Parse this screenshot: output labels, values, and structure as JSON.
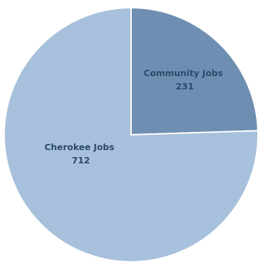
{
  "chart_data": {
    "type": "pie",
    "slices": [
      {
        "label": "Community Jobs",
        "value": 231,
        "value_label": "231",
        "color": "#6e8fb1"
      },
      {
        "label": "Cherokee Jobs",
        "value": 712,
        "value_label": "712",
        "color": "#a7c0db"
      }
    ],
    "label_color": "#2f4a6c",
    "edge_color": "#ffffff",
    "background": "#ffffff"
  }
}
